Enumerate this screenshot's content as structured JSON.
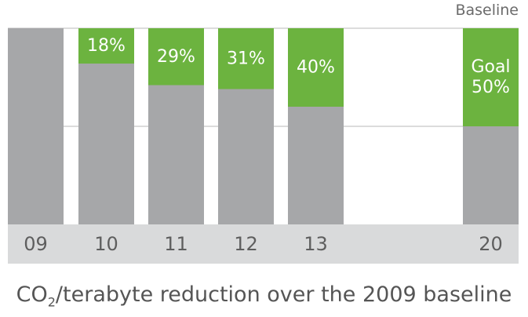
{
  "chart_data": {
    "type": "bar",
    "categories": [
      "09",
      "10",
      "11",
      "12",
      "13",
      "20"
    ],
    "reduction_percent": [
      0,
      18,
      29,
      31,
      40,
      50
    ],
    "bar_labels": [
      "",
      "18%",
      "29%",
      "31%",
      "40%",
      "Goal 50%"
    ],
    "y_label_baseline": "Baseline",
    "ylim": [
      0,
      100
    ],
    "grid": true,
    "colors": {
      "remaining": "#a6a7a9",
      "reduction": "#6cb33f",
      "axis_band": "#d9dadb",
      "gridline": "#d0d0d0",
      "tick_text": "#5e5e5e"
    }
  },
  "caption": {
    "pre": "CO",
    "sub": "2",
    "post": "/terabyte reduction over the 2009 baseline"
  },
  "header": {
    "baseline_label": "Baseline"
  }
}
